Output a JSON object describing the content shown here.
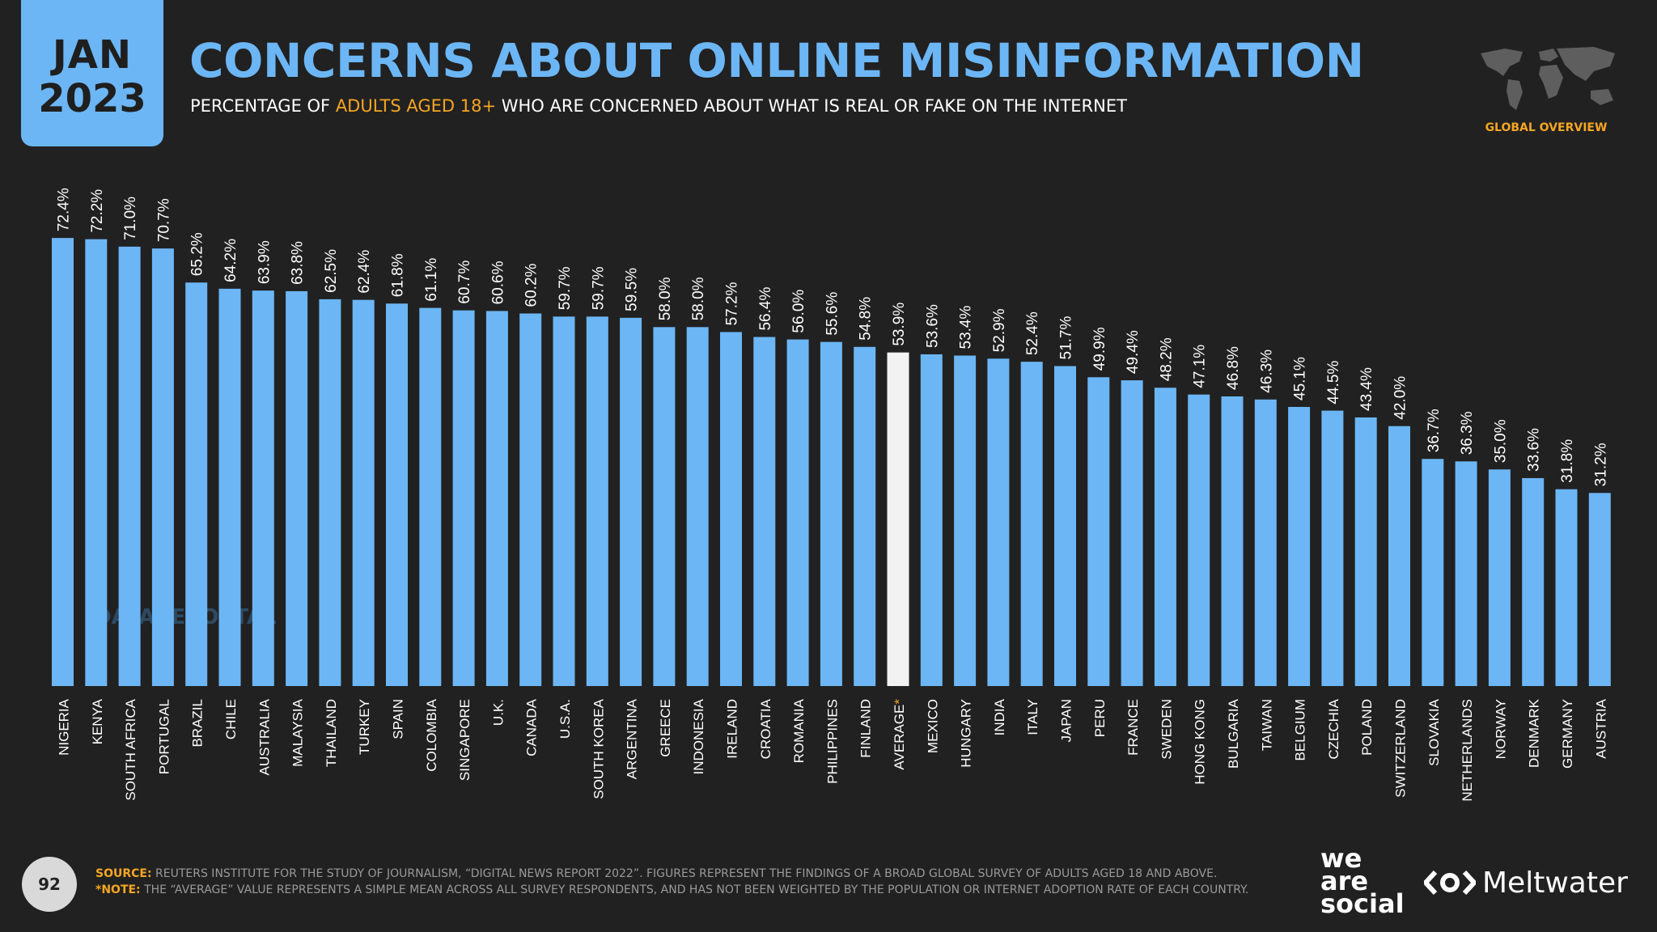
{
  "header": {
    "month": "JAN",
    "year": "2023",
    "title": "CONCERNS ABOUT ONLINE MISINFORMATION",
    "subtitle_pre": "PERCENTAGE OF ",
    "subtitle_highlight": "ADULTS AGED 18+",
    "subtitle_post": " WHO ARE CONCERNED ABOUT WHAT IS REAL OR FAKE ON THE INTERNET",
    "section_label": "GLOBAL OVERVIEW"
  },
  "watermark": "DATAREPORTAL",
  "footer": {
    "page_number": "92",
    "source_label": "SOURCE:",
    "source_text": " REUTERS INSTITUTE FOR THE STUDY OF JOURNALISM, “DIGITAL NEWS REPORT 2022”. FIGURES REPRESENT THE FINDINGS OF A BROAD GLOBAL SURVEY OF ADULTS AGED 18 AND ABOVE.",
    "note_label": "*NOTE:",
    "note_text": " THE “AVERAGE” VALUE REPRESENTS A SIMPLE MEAN ACROSS ALL SURVEY RESPONDENTS, AND HAS NOT BEEN WEIGHTED BY THE POPULATION OR INTERNET ADOPTION RATE OF EACH COUNTRY.",
    "brand_we": "we",
    "brand_are": "are",
    "brand_social": "social",
    "brand_meltwater": "Meltwater"
  },
  "colors": {
    "background": "#212121",
    "bar": "#6cb6f5",
    "highlight_bar": "#f2f2f2",
    "accent": "#f5a623",
    "title": "#6cb6f5"
  },
  "icons": {
    "map": "world-map-icon",
    "meltwater": "meltwater-logo-icon"
  },
  "chart_data": {
    "type": "bar",
    "orientation": "vertical",
    "sorted": "descending",
    "highlighted_category": "AVERAGE*",
    "value_suffix": "%",
    "ylim": [
      0,
      100
    ],
    "grid": false,
    "categories": [
      "NIGERIA",
      "KENYA",
      "SOUTH AFRICA",
      "PORTUGAL",
      "BRAZIL",
      "CHILE",
      "AUSTRALIA",
      "MALAYSIA",
      "THAILAND",
      "TURKEY",
      "SPAIN",
      "COLOMBIA",
      "SINGAPORE",
      "U.K.",
      "CANADA",
      "U.S.A.",
      "SOUTH KOREA",
      "ARGENTINA",
      "GREECE",
      "INDONESIA",
      "IRELAND",
      "CROATIA",
      "ROMANIA",
      "PHILIPPINES",
      "FINLAND",
      "AVERAGE*",
      "MEXICO",
      "HUNGARY",
      "INDIA",
      "ITALY",
      "JAPAN",
      "PERU",
      "FRANCE",
      "SWEDEN",
      "HONG KONG",
      "BULGARIA",
      "TAIWAN",
      "BELGIUM",
      "CZECHIA",
      "POLAND",
      "SWITZERLAND",
      "SLOVAKIA",
      "NETHERLANDS",
      "NORWAY",
      "DENMARK",
      "GERMANY",
      "AUSTRIA"
    ],
    "values": [
      72.4,
      72.2,
      71.0,
      70.7,
      65.2,
      64.2,
      63.9,
      63.8,
      62.5,
      62.4,
      61.8,
      61.1,
      60.7,
      60.6,
      60.2,
      59.7,
      59.7,
      59.5,
      58.0,
      58.0,
      57.2,
      56.4,
      56.0,
      55.6,
      54.8,
      53.9,
      53.6,
      53.4,
      52.9,
      52.4,
      51.7,
      49.9,
      49.4,
      48.2,
      47.1,
      46.8,
      46.3,
      45.1,
      44.5,
      43.4,
      42.0,
      36.7,
      36.3,
      35.0,
      33.6,
      31.8,
      31.2
    ],
    "labels": [
      "72.4%",
      "72.2%",
      "71.0%",
      "70.7%",
      "65.2%",
      "64.2%",
      "63.9%",
      "63.8%",
      "62.5%",
      "62.4%",
      "61.8%",
      "61.1%",
      "60.7%",
      "60.6%",
      "60.2%",
      "59.7%",
      "59.7%",
      "59.5%",
      "58.0%",
      "58.0%",
      "57.2%",
      "56.4%",
      "56.0%",
      "55.6%",
      "54.8%",
      "53.9%",
      "53.6%",
      "53.4%",
      "52.9%",
      "52.4%",
      "51.7%",
      "49.9%",
      "49.4%",
      "48.2%",
      "47.1%",
      "46.8%",
      "46.3%",
      "45.1%",
      "44.5%",
      "43.4%",
      "42.0%",
      "36.7%",
      "36.3%",
      "35.0%",
      "33.6%",
      "31.8%",
      "31.2%"
    ]
  }
}
